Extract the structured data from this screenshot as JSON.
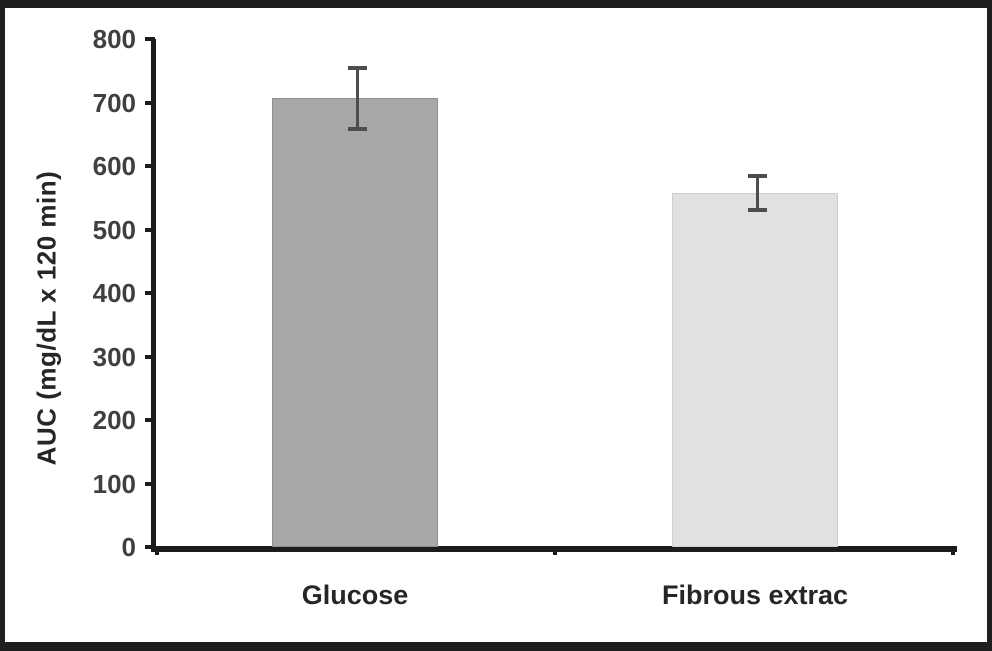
{
  "chart_data": {
    "type": "bar",
    "title": "",
    "ylabel": "AUC (mg/dL x 120 min)",
    "xlabel": "",
    "categories": [
      "Glucose",
      "Fibrous extrac"
    ],
    "values": [
      707,
      557
    ],
    "error_bars": [
      48,
      27
    ],
    "ylim": [
      0,
      800
    ],
    "ytick_step": 100,
    "ytick_labels": [
      "0",
      "100",
      "200",
      "300",
      "400",
      "500",
      "600",
      "700",
      "800"
    ],
    "grid": false,
    "legend": "none",
    "bar_colors": [
      "#a8a8a8",
      "#e1e1e1"
    ],
    "bar_edge_colors": [
      "#8f8f8f",
      "#cfcfcf"
    ],
    "error_bar_color": "#4d4d4d",
    "axis_color": "#1c1c1c",
    "tick_label_color": "#404040",
    "category_label_color": "#262626",
    "frame_color": "#1e1e1e",
    "background": "#ffffff"
  }
}
